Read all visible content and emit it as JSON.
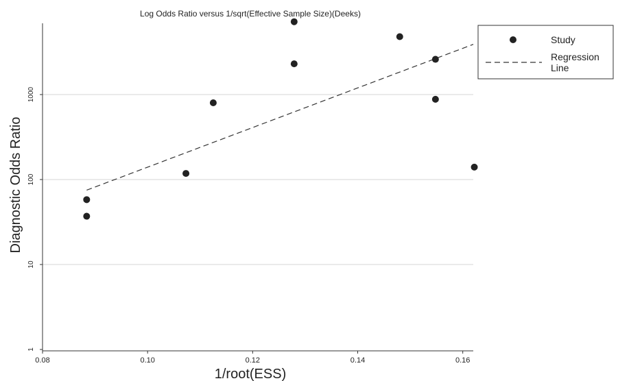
{
  "chart_data": {
    "type": "scatter",
    "title": "Log Odds Ratio versus 1/sqrt(Effective Sample Size)(Deeks)",
    "xlabel": "1/root(ESS)",
    "ylabel": "Diagnostic Odds Ratio",
    "xlim": [
      0.08,
      0.162
    ],
    "ylim": [
      1,
      10000
    ],
    "yscale": "log",
    "x_ticks": [
      0.08,
      0.1,
      0.12,
      0.14,
      0.16
    ],
    "x_tick_labels": [
      "0.08",
      "0.10",
      "0.12",
      "0.14",
      "0.16"
    ],
    "y_ticks": [
      1,
      10,
      100,
      1000
    ],
    "y_tick_labels": [
      "1",
      "10",
      "100",
      "1000"
    ],
    "grid": "horizontal",
    "legend_position": "right",
    "series": [
      {
        "name": "Study",
        "kind": "points",
        "color": "#222222",
        "points": [
          {
            "x": 0.0884,
            "y": 58
          },
          {
            "x": 0.0884,
            "y": 37
          },
          {
            "x": 0.1073,
            "y": 118
          },
          {
            "x": 0.1125,
            "y": 800
          },
          {
            "x": 0.1279,
            "y": 7200
          },
          {
            "x": 0.1279,
            "y": 2300
          },
          {
            "x": 0.148,
            "y": 4800
          },
          {
            "x": 0.1548,
            "y": 2600
          },
          {
            "x": 0.1548,
            "y": 880
          },
          {
            "x": 0.1622,
            "y": 140
          }
        ]
      },
      {
        "name": "Regression Line",
        "legend_lines": [
          "Regression",
          "Line"
        ],
        "kind": "dashed-line",
        "color": "#333333",
        "points": [
          {
            "x": 0.0884,
            "y": 75
          },
          {
            "x": 0.162,
            "y": 3900
          }
        ]
      }
    ]
  }
}
